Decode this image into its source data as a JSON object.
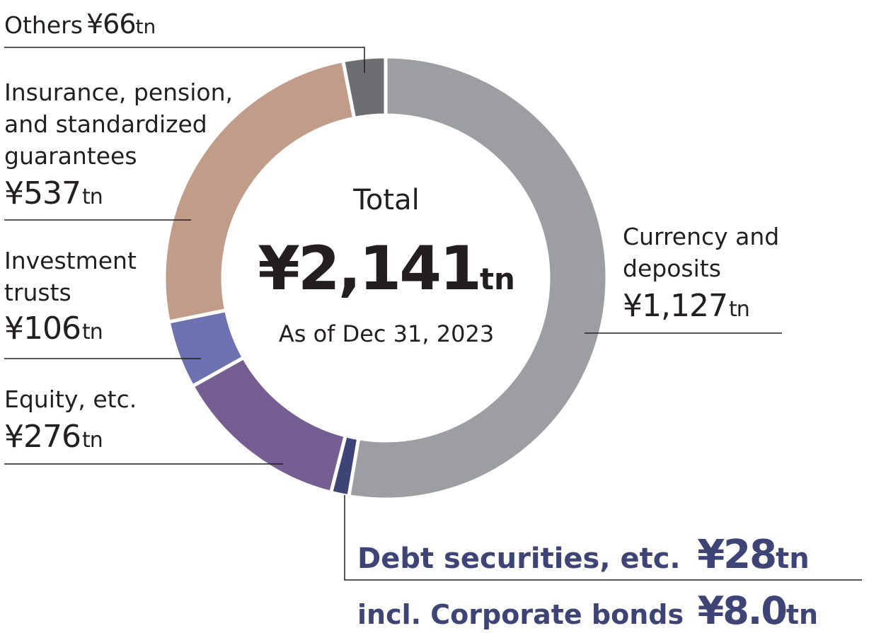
{
  "center": {
    "label": "Total",
    "value": "¥2,141",
    "unit": "tn",
    "date": "As of Dec 31, 2023"
  },
  "chart_data": {
    "type": "pie",
    "unit": "tn",
    "total": 2141,
    "as_of": "As of Dec 31, 2023",
    "slices": [
      {
        "label": "Currency and deposits",
        "value": 1127,
        "value_text": "¥1,127",
        "color": "#9d9ea2"
      },
      {
        "label": "Debt securities, etc.",
        "value": 28,
        "value_text": "¥28",
        "color": "#3e4576"
      },
      {
        "label": "Equity, etc.",
        "value": 276,
        "value_text": "¥276",
        "color": "#755f92"
      },
      {
        "label": "Investment trusts",
        "value": 106,
        "value_text": "¥106",
        "color": "#6c72b0"
      },
      {
        "label": "Insurance, pension, and standardized guarantees",
        "value": 537,
        "value_text": "¥537",
        "color": "#c19c89"
      },
      {
        "label": "Others",
        "value": 66,
        "value_text": "¥66",
        "color": "#6d6e71"
      }
    ],
    "sub_item": {
      "label": "incl. Corporate bonds",
      "value": 8.0,
      "value_text": "¥8.0",
      "parent": "Debt securities, etc."
    }
  },
  "labels": {
    "currency": {
      "name": "Currency and\ndeposits",
      "value": "¥1,127",
      "unit": "tn"
    },
    "debt": {
      "name": "Debt securities, etc.",
      "value": "¥28",
      "unit": "tn"
    },
    "corporate": {
      "name": "incl. Corporate bonds",
      "value": "¥8.0",
      "unit": "tn"
    },
    "equity": {
      "name": "Equity, etc.",
      "value": "¥276",
      "unit": "tn"
    },
    "investment": {
      "name": "Investment\ntrusts",
      "value": "¥106",
      "unit": "tn"
    },
    "insurance": {
      "name": "Insurance, pension,\nand standardized\nguarantees",
      "value": "¥537",
      "unit": "tn"
    },
    "others": {
      "name": "Others",
      "value": "¥66",
      "unit": "tn"
    }
  }
}
